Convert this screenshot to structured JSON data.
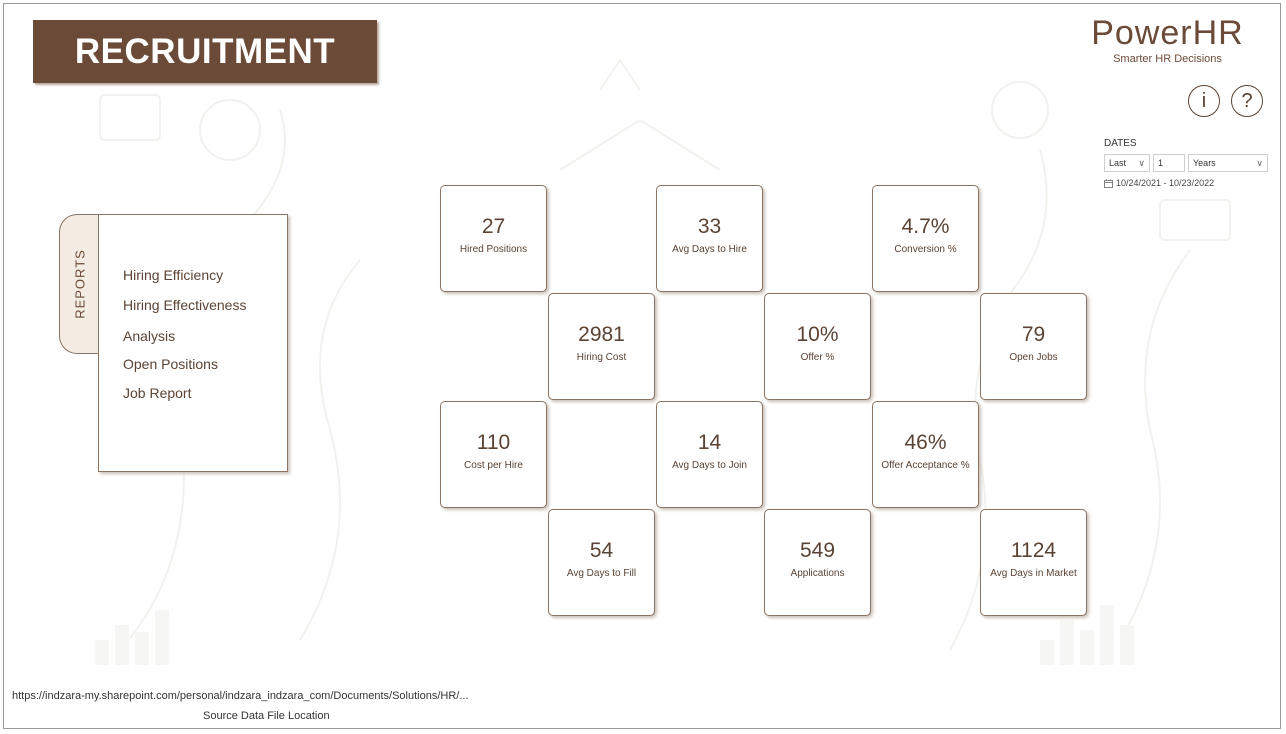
{
  "header": {
    "title": "RECRUITMENT"
  },
  "brand": {
    "name": "PowerHR",
    "tagline": "Smarter HR Decisions"
  },
  "buttons": {
    "info_glyph": "i",
    "help_glyph": "?"
  },
  "dates": {
    "label": "DATES",
    "period_select": "Last",
    "period_count": "1",
    "period_unit": "Years",
    "range": "10/24/2021 - 10/23/2022"
  },
  "reports": {
    "tab_label": "REPORTS",
    "items": [
      "Hiring Efficiency",
      "Hiring Effectiveness",
      "Analysis",
      "Open Positions",
      "Job Report"
    ]
  },
  "kpis": [
    {
      "value": "27",
      "label": "Hired Positions"
    },
    {
      "value": "33",
      "label": "Avg Days to Hire"
    },
    {
      "value": "4.7%",
      "label": "Conversion %"
    },
    {
      "value": "2981",
      "label": "Hiring Cost"
    },
    {
      "value": "10%",
      "label": "Offer %"
    },
    {
      "value": "79",
      "label": "Open Jobs"
    },
    {
      "value": "110",
      "label": "Cost per Hire"
    },
    {
      "value": "14",
      "label": "Avg Days to Join"
    },
    {
      "value": "46%",
      "label": "Offer Acceptance %"
    },
    {
      "value": "54",
      "label": "Avg Days to Fill"
    },
    {
      "value": "549",
      "label": "Applications"
    },
    {
      "value": "1124",
      "label": "Avg Days in Market"
    }
  ],
  "footer": {
    "url": "https://indzara-my.sharepoint.com/personal/indzara_indzara_com/Documents/Solutions/HR/...",
    "caption": "Source Data File Location"
  },
  "colors": {
    "brand_brown": "#6b4a38",
    "text_brown": "#5a4334"
  }
}
